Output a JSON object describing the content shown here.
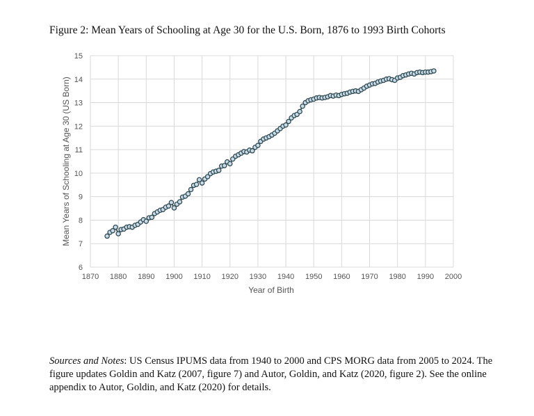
{
  "figure": {
    "title": "Figure 2: Mean Years of Schooling at Age 30 for the U.S. Born, 1876 to 1993 Birth Cohorts"
  },
  "notes": {
    "lead": "Sources and Notes",
    "text": ": US Census IPUMS data from 1940 to 2000 and CPS MORG data from 2005 to 2024. The figure updates Goldin and Katz (2007, figure 7) and Autor, Goldin, and Katz (2020, figure 2). See the online appendix to Autor, Goldin, and Katz (2020) for details."
  },
  "chart_data": {
    "type": "line",
    "title": "",
    "xlabel": "Year of Birth",
    "ylabel": "Mean Years of Schooling at Age 30 (US Born)",
    "xlim": [
      1870,
      2000
    ],
    "ylim": [
      6,
      15
    ],
    "xticks": [
      1870,
      1880,
      1890,
      1900,
      1910,
      1920,
      1930,
      1940,
      1950,
      1960,
      1970,
      1980,
      1990,
      2000
    ],
    "yticks": [
      6,
      7,
      8,
      9,
      10,
      11,
      12,
      13,
      14,
      15
    ],
    "grid": true,
    "legend": "none",
    "colors": {
      "line": "#2f4a52",
      "marker_fill": "#c9dbe6",
      "marker_edge": "#2f4a52",
      "grid": "#d9d9d9"
    },
    "series": [
      {
        "x": [
          1876,
          1877,
          1878,
          1879,
          1880,
          1881,
          1882,
          1883,
          1884,
          1885,
          1886,
          1887,
          1888,
          1889,
          1890,
          1891,
          1892,
          1893,
          1894,
          1895,
          1896,
          1897,
          1898,
          1899,
          1900,
          1901,
          1902,
          1903,
          1904,
          1905,
          1906,
          1907,
          1908,
          1909,
          1910,
          1911,
          1912,
          1913,
          1914,
          1915,
          1916,
          1917,
          1918,
          1919,
          1920,
          1921,
          1922,
          1923,
          1924,
          1925,
          1926,
          1927,
          1928,
          1929,
          1930,
          1931,
          1932,
          1933,
          1934,
          1935,
          1936,
          1937,
          1938,
          1939,
          1940,
          1941,
          1942,
          1943,
          1944,
          1945,
          1946,
          1947,
          1948,
          1949,
          1950,
          1951,
          1952,
          1953,
          1954,
          1955,
          1956,
          1957,
          1958,
          1959,
          1960,
          1961,
          1962,
          1963,
          1964,
          1965,
          1966,
          1967,
          1968,
          1969,
          1970,
          1971,
          1972,
          1973,
          1974,
          1975,
          1976,
          1977,
          1978,
          1979,
          1980,
          1981,
          1982,
          1983,
          1984,
          1985,
          1986,
          1987,
          1988,
          1989,
          1990,
          1991,
          1992,
          1993
        ],
        "values": [
          7.32,
          7.48,
          7.55,
          7.7,
          7.42,
          7.6,
          7.62,
          7.7,
          7.72,
          7.7,
          7.78,
          7.82,
          7.92,
          8.02,
          7.95,
          8.1,
          8.12,
          8.28,
          8.35,
          8.42,
          8.45,
          8.55,
          8.6,
          8.75,
          8.52,
          8.68,
          8.78,
          8.98,
          9.02,
          9.12,
          9.3,
          9.48,
          9.52,
          9.72,
          9.58,
          9.75,
          9.85,
          9.98,
          10.05,
          10.08,
          10.12,
          10.3,
          10.32,
          10.48,
          10.4,
          10.6,
          10.72,
          10.78,
          10.85,
          10.92,
          10.9,
          10.98,
          10.95,
          11.1,
          11.18,
          11.35,
          11.45,
          11.5,
          11.55,
          11.62,
          11.7,
          11.8,
          11.9,
          12.0,
          12.05,
          12.2,
          12.35,
          12.45,
          12.5,
          12.62,
          12.85,
          13.0,
          13.08,
          13.12,
          13.15,
          13.2,
          13.22,
          13.2,
          13.22,
          13.25,
          13.3,
          13.28,
          13.32,
          13.3,
          13.35,
          13.38,
          13.4,
          13.45,
          13.48,
          13.5,
          13.48,
          13.55,
          13.62,
          13.7,
          13.75,
          13.8,
          13.82,
          13.88,
          13.92,
          13.95,
          14.0,
          14.02,
          13.98,
          13.95,
          14.05,
          14.08,
          14.15,
          14.18,
          14.22,
          14.25,
          14.22,
          14.28,
          14.3,
          14.28,
          14.3,
          14.3,
          14.32,
          14.35
        ]
      }
    ]
  }
}
